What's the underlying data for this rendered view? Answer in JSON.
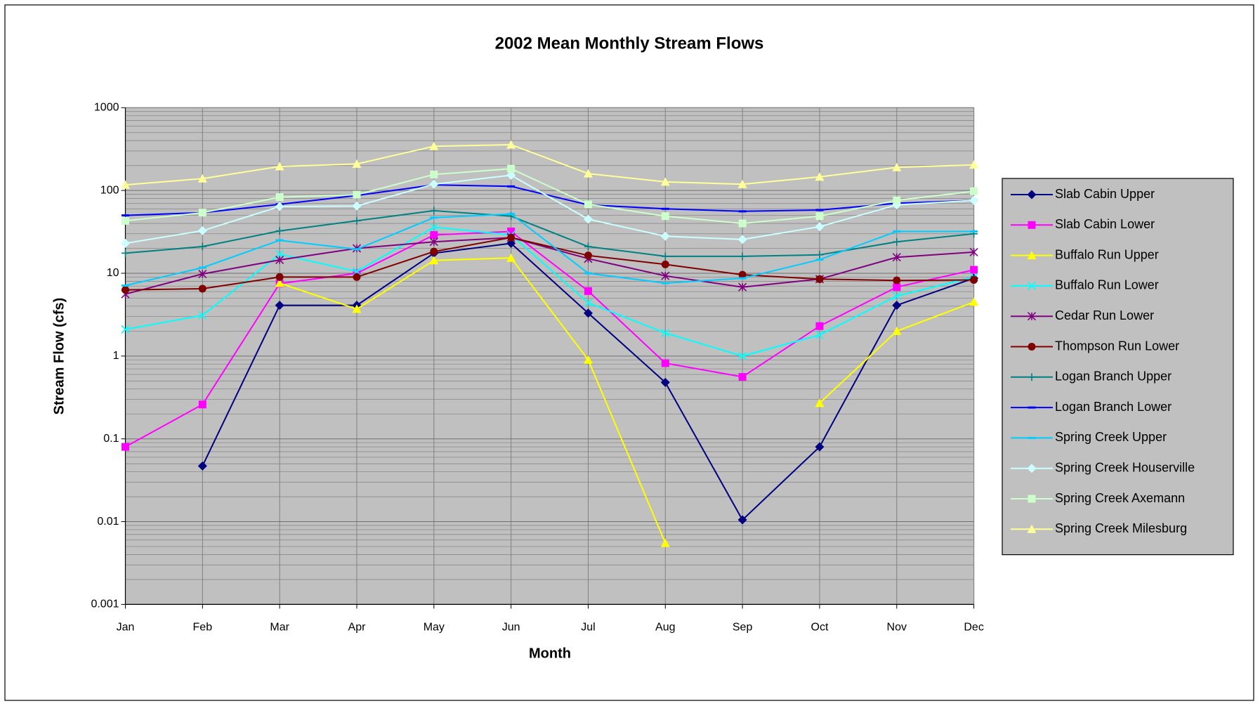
{
  "chart_data": {
    "type": "line",
    "title": "2002 Mean Monthly Stream Flows",
    "xlabel": "Month",
    "ylabel": "Stream Flow (cfs)",
    "categories": [
      "Jan",
      "Feb",
      "Mar",
      "Apr",
      "May",
      "Jun",
      "Jul",
      "Aug",
      "Sep",
      "Oct",
      "Nov",
      "Dec"
    ],
    "ylim": [
      0.001,
      1000
    ],
    "yticks": [
      1000,
      100,
      10,
      1,
      0.1,
      0.01,
      0.001
    ],
    "yscale": "log",
    "grid": true,
    "legend": "right",
    "series": [
      {
        "name": "Slab Cabin Upper",
        "color": "#000080",
        "marker": "diamond",
        "values": [
          null,
          0.047,
          4.1,
          4.1,
          17.5,
          23,
          3.3,
          0.48,
          0.0105,
          0.08,
          4.1,
          8.7
        ]
      },
      {
        "name": "Slab Cabin Lower",
        "color": "#ff00ff",
        "marker": "square",
        "values": [
          0.08,
          0.26,
          7.5,
          10,
          29,
          32,
          6.1,
          0.82,
          0.56,
          2.3,
          6.8,
          11
        ]
      },
      {
        "name": "Buffalo Run Upper",
        "color": "#ffff00",
        "marker": "triangle",
        "values": [
          null,
          null,
          7.6,
          3.7,
          14.3,
          15.3,
          0.9,
          0.0055,
          null,
          0.27,
          2.0,
          4.5
        ]
      },
      {
        "name": "Buffalo Run Lower",
        "color": "#00ffff",
        "marker": "x",
        "values": [
          2.1,
          3.1,
          17,
          10.5,
          36,
          29,
          4.4,
          1.9,
          1.0,
          1.8,
          5.3,
          9.0
        ]
      },
      {
        "name": "Cedar Run Lower",
        "color": "#800080",
        "marker": "star",
        "values": [
          5.6,
          9.8,
          14.5,
          20,
          24,
          27,
          15,
          9.3,
          6.8,
          8.5,
          15.6,
          18
        ]
      },
      {
        "name": "Thompson Run Lower",
        "color": "#800000",
        "marker": "circle",
        "values": [
          6.3,
          6.5,
          9,
          9,
          18.3,
          27,
          16.4,
          12.8,
          9.6,
          8.5,
          8.2,
          8.3
        ]
      },
      {
        "name": "Logan Branch Upper",
        "color": "#008080",
        "marker": "plus",
        "values": [
          17.5,
          21,
          32.5,
          43,
          57,
          49,
          21,
          16,
          16,
          16.7,
          24,
          30
        ]
      },
      {
        "name": "Logan Branch Lower",
        "color": "#0000ff",
        "marker": "dash",
        "values": [
          50,
          54,
          68,
          87,
          117,
          112,
          67,
          60,
          56,
          58,
          70,
          76
        ]
      },
      {
        "name": "Spring Creek Upper",
        "color": "#00ccff",
        "marker": "dash",
        "values": [
          7.1,
          11.7,
          25,
          19.5,
          47,
          52,
          10,
          7.6,
          8.7,
          14.6,
          32,
          32
        ]
      },
      {
        "name": "Spring Creek Houserville",
        "color": "#ccffff",
        "marker": "diamond",
        "values": [
          23,
          32.7,
          64,
          65,
          119,
          153,
          45,
          28,
          25.6,
          36.5,
          67,
          76
        ]
      },
      {
        "name": "Spring Creek Axemann",
        "color": "#ccffcc",
        "marker": "square",
        "values": [
          43,
          54,
          83,
          89,
          156,
          183,
          68,
          49,
          40,
          49,
          76,
          98
        ]
      },
      {
        "name": "Spring Creek Milesburg",
        "color": "#ffff99",
        "marker": "triangle",
        "values": [
          117,
          139,
          195,
          209,
          342,
          357,
          160,
          127,
          119,
          146,
          190,
          204
        ]
      }
    ]
  }
}
